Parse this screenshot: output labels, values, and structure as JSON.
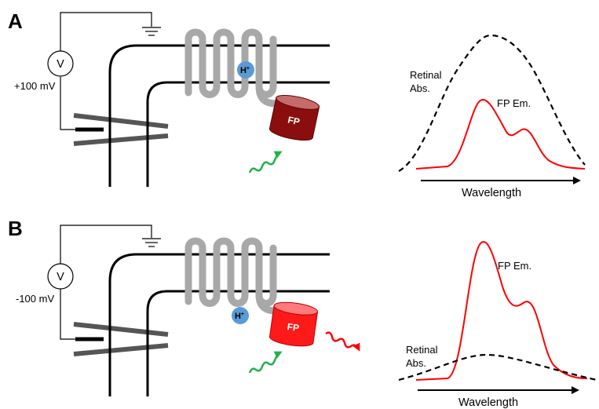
{
  "panels": [
    {
      "letter": "A",
      "voltmeter": "V",
      "voltage": "+100 mV",
      "proton": "H",
      "proton_charge": "+",
      "fp_label": "FP",
      "fp_color": "#8b0e0e",
      "fp_top_color": "#c76a6a",
      "retinal_label_line1": "Retinal",
      "retinal_label_line2": "Abs.",
      "fp_em_label": "FP Em.",
      "axis_label": "Wavelength",
      "emission_arrow": false
    },
    {
      "letter": "B",
      "voltmeter": "V",
      "voltage": "-100 mV",
      "proton": "H",
      "proton_charge": "+",
      "fp_label": "FP",
      "fp_color": "#ff1a1a",
      "fp_top_color": "#ff7a7a",
      "retinal_label_line1": "Retinal",
      "retinal_label_line2": "Abs.",
      "fp_em_label": "FP Em.",
      "axis_label": "Wavelength",
      "emission_arrow": true
    }
  ],
  "colors": {
    "membrane": "#000000",
    "helix": "#a8a8a8",
    "electrode": "#555555",
    "proton_fill": "#5b9bd5",
    "excitation": "#22b14c",
    "emission": "#ff0000",
    "emission_curve": "#ff0000",
    "absorption_curve": "#000000"
  }
}
